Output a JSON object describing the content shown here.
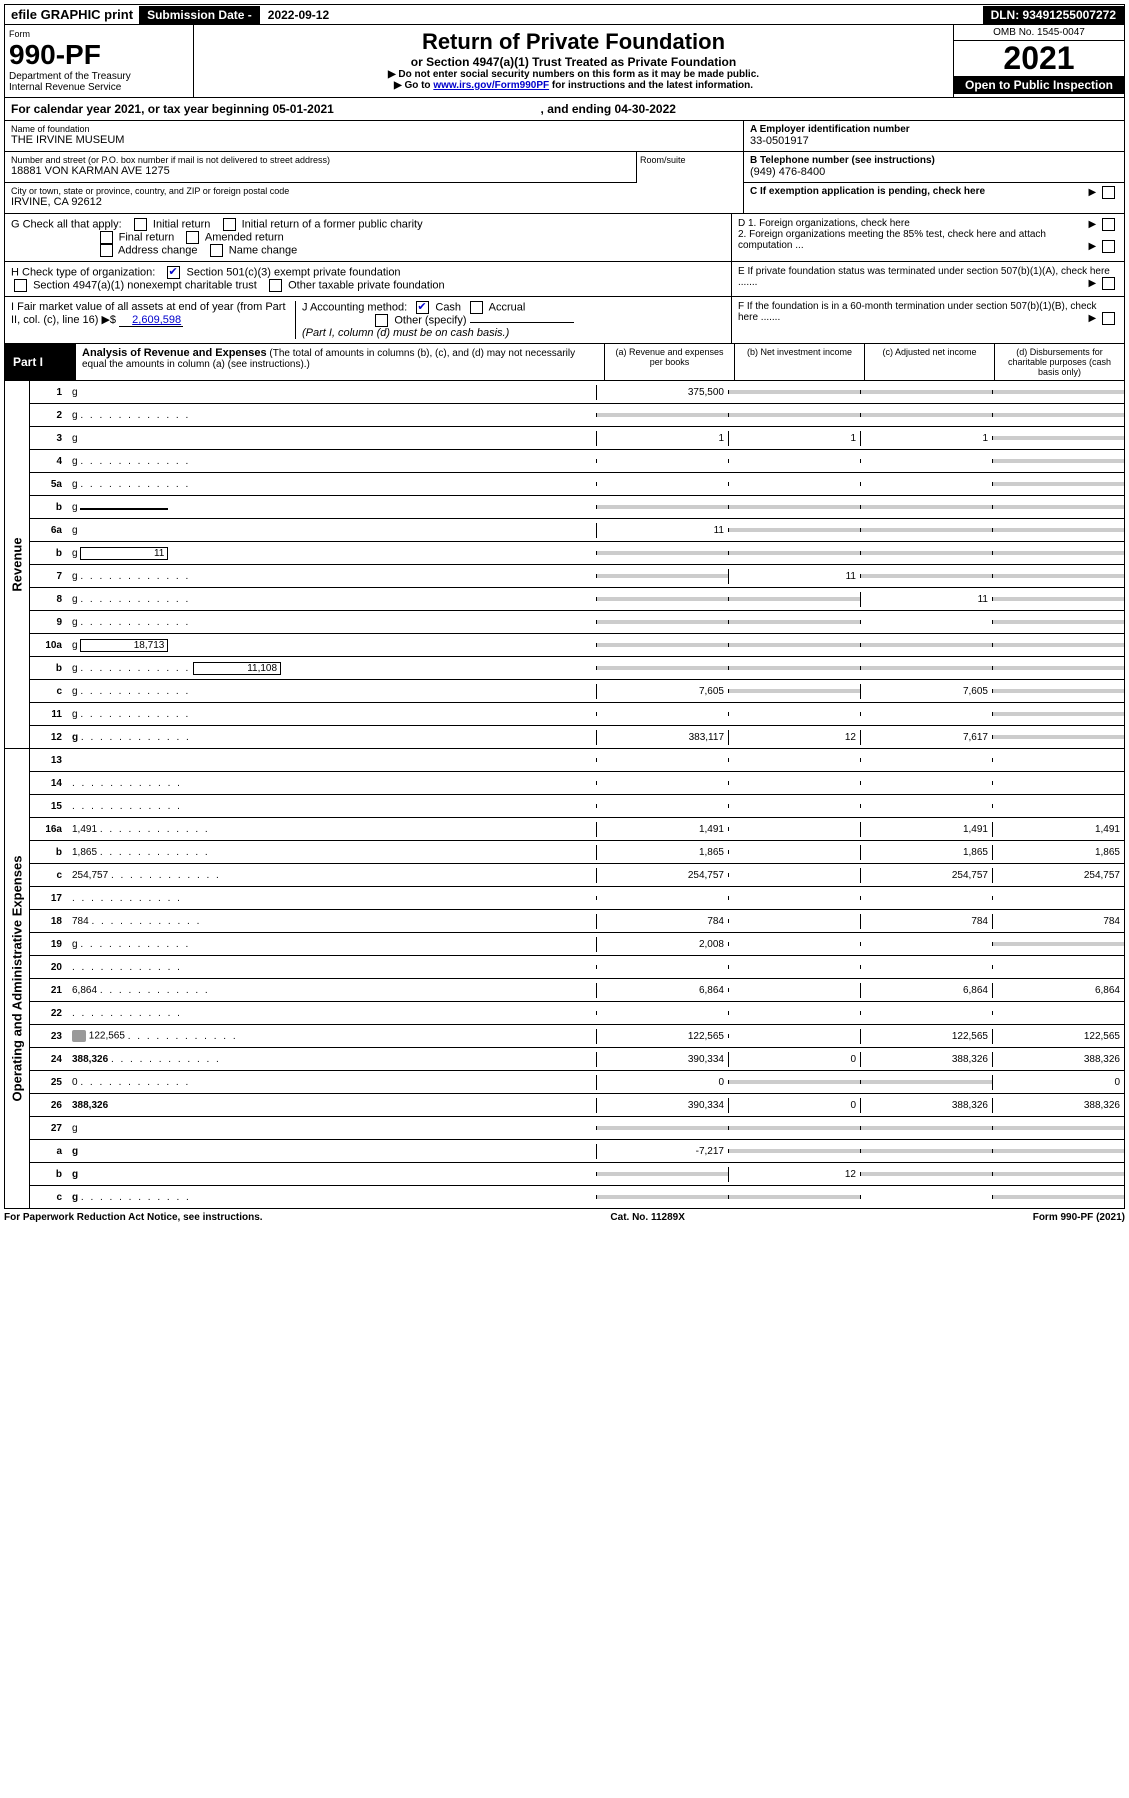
{
  "topbar": {
    "efile_label": "efile GRAPHIC print",
    "subdate_label": "Submission Date - ",
    "subdate_val": "2022-09-12",
    "dln": "DLN: 93491255007272"
  },
  "header": {
    "form_label": "Form",
    "form_no": "990-PF",
    "dept1": "Department of the Treasury",
    "dept2": "Internal Revenue Service",
    "title": "Return of Private Foundation",
    "subtitle": "or Section 4947(a)(1) Trust Treated as Private Foundation",
    "note1": "▶ Do not enter social security numbers on this form as it may be made public.",
    "note2_pre": "▶ Go to ",
    "note2_link": "www.irs.gov/Form990PF",
    "note2_post": " for instructions and the latest information.",
    "omb": "OMB No. 1545-0047",
    "year": "2021",
    "open": "Open to Public Inspection"
  },
  "cal_year": {
    "pre": "For calendar year 2021, or tax year beginning ",
    "begin": "05-01-2021",
    "mid": " , and ending ",
    "end": "04-30-2022"
  },
  "info": {
    "name_lbl": "Name of foundation",
    "name_val": "THE IRVINE MUSEUM",
    "addr_lbl": "Number and street (or P.O. box number if mail is not delivered to street address)",
    "addr_val": "18881 VON KARMAN AVE 1275",
    "room_lbl": "Room/suite",
    "city_lbl": "City or town, state or province, country, and ZIP or foreign postal code",
    "city_val": "IRVINE, CA  92612",
    "a_lbl": "A Employer identification number",
    "a_val": "33-0501917",
    "b_lbl": "B Telephone number (see instructions)",
    "b_val": "(949) 476-8400",
    "c_lbl": "C If exemption application is pending, check here",
    "g_lbl": "G Check all that apply:",
    "g_opts": [
      "Initial return",
      "Initial return of a former public charity",
      "Final return",
      "Amended return",
      "Address change",
      "Name change"
    ],
    "d1_lbl": "D 1. Foreign organizations, check here",
    "d2_lbl": "2. Foreign organizations meeting the 85% test, check here and attach computation ...",
    "h_lbl": "H Check type of organization:",
    "h_opts": [
      "Section 501(c)(3) exempt private foundation",
      "Section 4947(a)(1) nonexempt charitable trust",
      "Other taxable private foundation"
    ],
    "e_lbl": "E If private foundation status was terminated under section 507(b)(1)(A), check here .......",
    "i_lbl_pre": "I Fair market value of all assets at end of year (from Part II, col. (c), line 16) ▶$ ",
    "i_val": "2,609,598",
    "j_lbl": "J Accounting method:",
    "j_cash": "Cash",
    "j_accrual": "Accrual",
    "j_other": "Other (specify)",
    "j_note": "(Part I, column (d) must be on cash basis.)",
    "f_lbl": "F If the foundation is in a 60-month termination under section 507(b)(1)(B), check here ......."
  },
  "part1": {
    "label": "Part I",
    "title": "Analysis of Revenue and Expenses",
    "note": " (The total of amounts in columns (b), (c), and (d) may not necessarily equal the amounts in column (a) (see instructions).)",
    "col_a": "(a) Revenue and expenses per books",
    "col_b": "(b) Net investment income",
    "col_c": "(c) Adjusted net income",
    "col_d": "(d) Disbursements for charitable purposes (cash basis only)"
  },
  "rot": {
    "revenue": "Revenue",
    "expenses": "Operating and Administrative Expenses"
  },
  "lines": [
    {
      "n": "1",
      "d": "g",
      "a": "375,500",
      "b": "g",
      "c": "g"
    },
    {
      "n": "2",
      "d": "g",
      "dots": true,
      "a": "g",
      "b": "g",
      "c": "g"
    },
    {
      "n": "3",
      "d": "g",
      "a": "1",
      "b": "1",
      "c": "1"
    },
    {
      "n": "4",
      "d": "g",
      "dots": true,
      "a": "",
      "b": "",
      "c": ""
    },
    {
      "n": "5a",
      "d": "g",
      "dots": true,
      "a": "",
      "b": "",
      "c": ""
    },
    {
      "n": "b",
      "d": "g",
      "inline": "",
      "a": "g",
      "b": "g",
      "c": "g"
    },
    {
      "n": "6a",
      "d": "g",
      "a": "11",
      "b": "g",
      "c": "g"
    },
    {
      "n": "b",
      "d": "g",
      "inline": "11",
      "a": "g",
      "b": "g",
      "c": "g"
    },
    {
      "n": "7",
      "d": "g",
      "dots": true,
      "a": "g",
      "b": "11",
      "c": "g"
    },
    {
      "n": "8",
      "d": "g",
      "dots": true,
      "a": "g",
      "b": "g",
      "c": "11"
    },
    {
      "n": "9",
      "d": "g",
      "dots": true,
      "a": "g",
      "b": "g",
      "c": ""
    },
    {
      "n": "10a",
      "d": "g",
      "inline": "18,713",
      "a": "g",
      "b": "g",
      "c": "g"
    },
    {
      "n": "b",
      "d": "g",
      "dots": true,
      "inline": "11,108",
      "a": "g",
      "b": "g",
      "c": "g"
    },
    {
      "n": "c",
      "d": "g",
      "dots": true,
      "a": "7,605",
      "b": "g",
      "c": "7,605"
    },
    {
      "n": "11",
      "d": "g",
      "dots": true,
      "a": "",
      "b": "",
      "c": ""
    },
    {
      "n": "12",
      "d": "g",
      "bold": true,
      "dots": true,
      "a": "383,117",
      "b": "12",
      "c": "7,617"
    }
  ],
  "exp_lines": [
    {
      "n": "13",
      "d": "",
      "a": "",
      "b": "",
      "c": ""
    },
    {
      "n": "14",
      "d": "",
      "dots": true,
      "a": "",
      "b": "",
      "c": ""
    },
    {
      "n": "15",
      "d": "",
      "dots": true,
      "a": "",
      "b": "",
      "c": ""
    },
    {
      "n": "16a",
      "d": "1,491",
      "dots": true,
      "a": "1,491",
      "b": "",
      "c": "1,491"
    },
    {
      "n": "b",
      "d": "1,865",
      "dots": true,
      "a": "1,865",
      "b": "",
      "c": "1,865"
    },
    {
      "n": "c",
      "d": "254,757",
      "dots": true,
      "a": "254,757",
      "b": "",
      "c": "254,757"
    },
    {
      "n": "17",
      "d": "",
      "dots": true,
      "a": "",
      "b": "",
      "c": ""
    },
    {
      "n": "18",
      "d": "784",
      "dots": true,
      "a": "784",
      "b": "",
      "c": "784"
    },
    {
      "n": "19",
      "d": "g",
      "dots": true,
      "a": "2,008",
      "b": "",
      "c": ""
    },
    {
      "n": "20",
      "d": "",
      "dots": true,
      "a": "",
      "b": "",
      "c": ""
    },
    {
      "n": "21",
      "d": "6,864",
      "dots": true,
      "a": "6,864",
      "b": "",
      "c": "6,864"
    },
    {
      "n": "22",
      "d": "",
      "dots": true,
      "a": "",
      "b": "",
      "c": ""
    },
    {
      "n": "23",
      "d": "122,565",
      "dots": true,
      "icon": true,
      "a": "122,565",
      "b": "",
      "c": "122,565"
    },
    {
      "n": "24",
      "d": "388,326",
      "bold": true,
      "dots": true,
      "a": "390,334",
      "b": "0",
      "c": "388,326"
    },
    {
      "n": "25",
      "d": "0",
      "dots": true,
      "a": "0",
      "b": "g",
      "c": "g"
    },
    {
      "n": "26",
      "d": "388,326",
      "bold": true,
      "a": "390,334",
      "b": "0",
      "c": "388,326"
    },
    {
      "n": "27",
      "d": "g",
      "a": "g",
      "b": "g",
      "c": "g"
    },
    {
      "n": "a",
      "d": "g",
      "bold": true,
      "a": "-7,217",
      "b": "g",
      "c": "g"
    },
    {
      "n": "b",
      "d": "g",
      "bold": true,
      "a": "g",
      "b": "12",
      "c": "g"
    },
    {
      "n": "c",
      "d": "g",
      "bold": true,
      "dots": true,
      "a": "g",
      "b": "g",
      "c": ""
    }
  ],
  "footer": {
    "left": "For Paperwork Reduction Act Notice, see instructions.",
    "center": "Cat. No. 11289X",
    "right": "Form 990-PF (2021)"
  },
  "colors": {
    "link": "#0000cc",
    "grey": "#cccccc",
    "black": "#000000"
  }
}
